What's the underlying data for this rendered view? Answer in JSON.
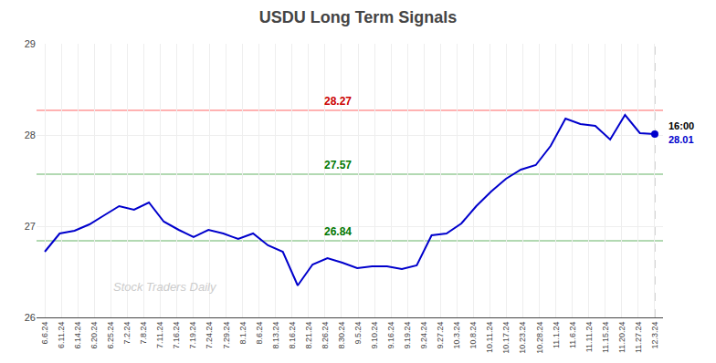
{
  "chart_data": {
    "type": "line",
    "title": "USDU Long Term Signals",
    "xticks": [
      {
        "value": 0,
        "label": "6.6.24"
      },
      {
        "value": 1,
        "label": "6.11.24"
      },
      {
        "value": 2,
        "label": "6.14.24"
      },
      {
        "value": 3,
        "label": "6.20.24"
      },
      {
        "value": 4,
        "label": "6.25.24"
      },
      {
        "value": 5,
        "label": "7.2.24"
      },
      {
        "value": 6,
        "label": "7.8.24"
      },
      {
        "value": 7,
        "label": "7.11.24"
      },
      {
        "value": 8,
        "label": "7.16.24"
      },
      {
        "value": 9,
        "label": "7.19.24"
      },
      {
        "value": 10,
        "label": "7.24.24"
      },
      {
        "value": 11,
        "label": "7.29.24"
      },
      {
        "value": 12,
        "label": "8.1.24"
      },
      {
        "value": 13,
        "label": "8.6.24"
      },
      {
        "value": 14,
        "label": "8.13.24"
      },
      {
        "value": 15,
        "label": "8.16.24"
      },
      {
        "value": 16,
        "label": "8.21.24"
      },
      {
        "value": 17,
        "label": "8.26.24"
      },
      {
        "value": 18,
        "label": "8.30.24"
      },
      {
        "value": 19,
        "label": "9.5.24"
      },
      {
        "value": 20,
        "label": "9.10.24"
      },
      {
        "value": 21,
        "label": "9.16.24"
      },
      {
        "value": 22,
        "label": "9.19.24"
      },
      {
        "value": 23,
        "label": "9.24.24"
      },
      {
        "value": 24,
        "label": "9.27.24"
      },
      {
        "value": 25,
        "label": "10.3.24"
      },
      {
        "value": 26,
        "label": "10.8.24"
      },
      {
        "value": 27,
        "label": "10.11.24"
      },
      {
        "value": 28,
        "label": "10.17.24"
      },
      {
        "value": 29,
        "label": "10.23.24"
      },
      {
        "value": 30,
        "label": "10.28.24"
      },
      {
        "value": 31,
        "label": "11.1.24"
      },
      {
        "value": 32,
        "label": "11.6.24"
      },
      {
        "value": 33,
        "label": "11.11.24"
      },
      {
        "value": 34,
        "label": "11.15.24"
      },
      {
        "value": 35,
        "label": "11.20.24"
      },
      {
        "value": 36,
        "label": "11.27.24"
      },
      {
        "value": 37,
        "label": "12.3.24"
      }
    ],
    "xlim": [
      -0.5,
      37.5
    ],
    "values": [
      26.72,
      26.92,
      26.95,
      27.02,
      27.12,
      27.22,
      27.18,
      27.26,
      27.05,
      26.96,
      26.88,
      26.96,
      26.92,
      26.86,
      26.92,
      26.79,
      26.72,
      26.35,
      26.58,
      26.65,
      26.6,
      26.54,
      26.56,
      26.56,
      26.53,
      26.57,
      26.9,
      26.92,
      27.03,
      27.22,
      27.38,
      27.52,
      27.62,
      27.67,
      27.88,
      28.18,
      28.12,
      28.1,
      27.95,
      28.22,
      28.02,
      28.01
    ],
    "color": "#0000cc",
    "ylim": [
      26.0,
      29.0
    ],
    "yticks": [
      26,
      27,
      28,
      29
    ],
    "grid": true,
    "hlines": [
      {
        "value": 28.27,
        "label": "28.27",
        "color": "#ff9999",
        "label_color": "#cc0000"
      },
      {
        "value": 27.57,
        "label": "27.57",
        "color": "#99cc99",
        "label_color": "#007700"
      },
      {
        "value": 26.84,
        "label": "26.84",
        "color": "#99cc99",
        "label_color": "#007700"
      }
    ],
    "last_price": {
      "time": "16:00",
      "label": "28.01",
      "value": 28.01,
      "color": "#0000cc"
    },
    "watermark": {
      "text": "Stock Traders Daily",
      "color": "#cccccc"
    }
  }
}
